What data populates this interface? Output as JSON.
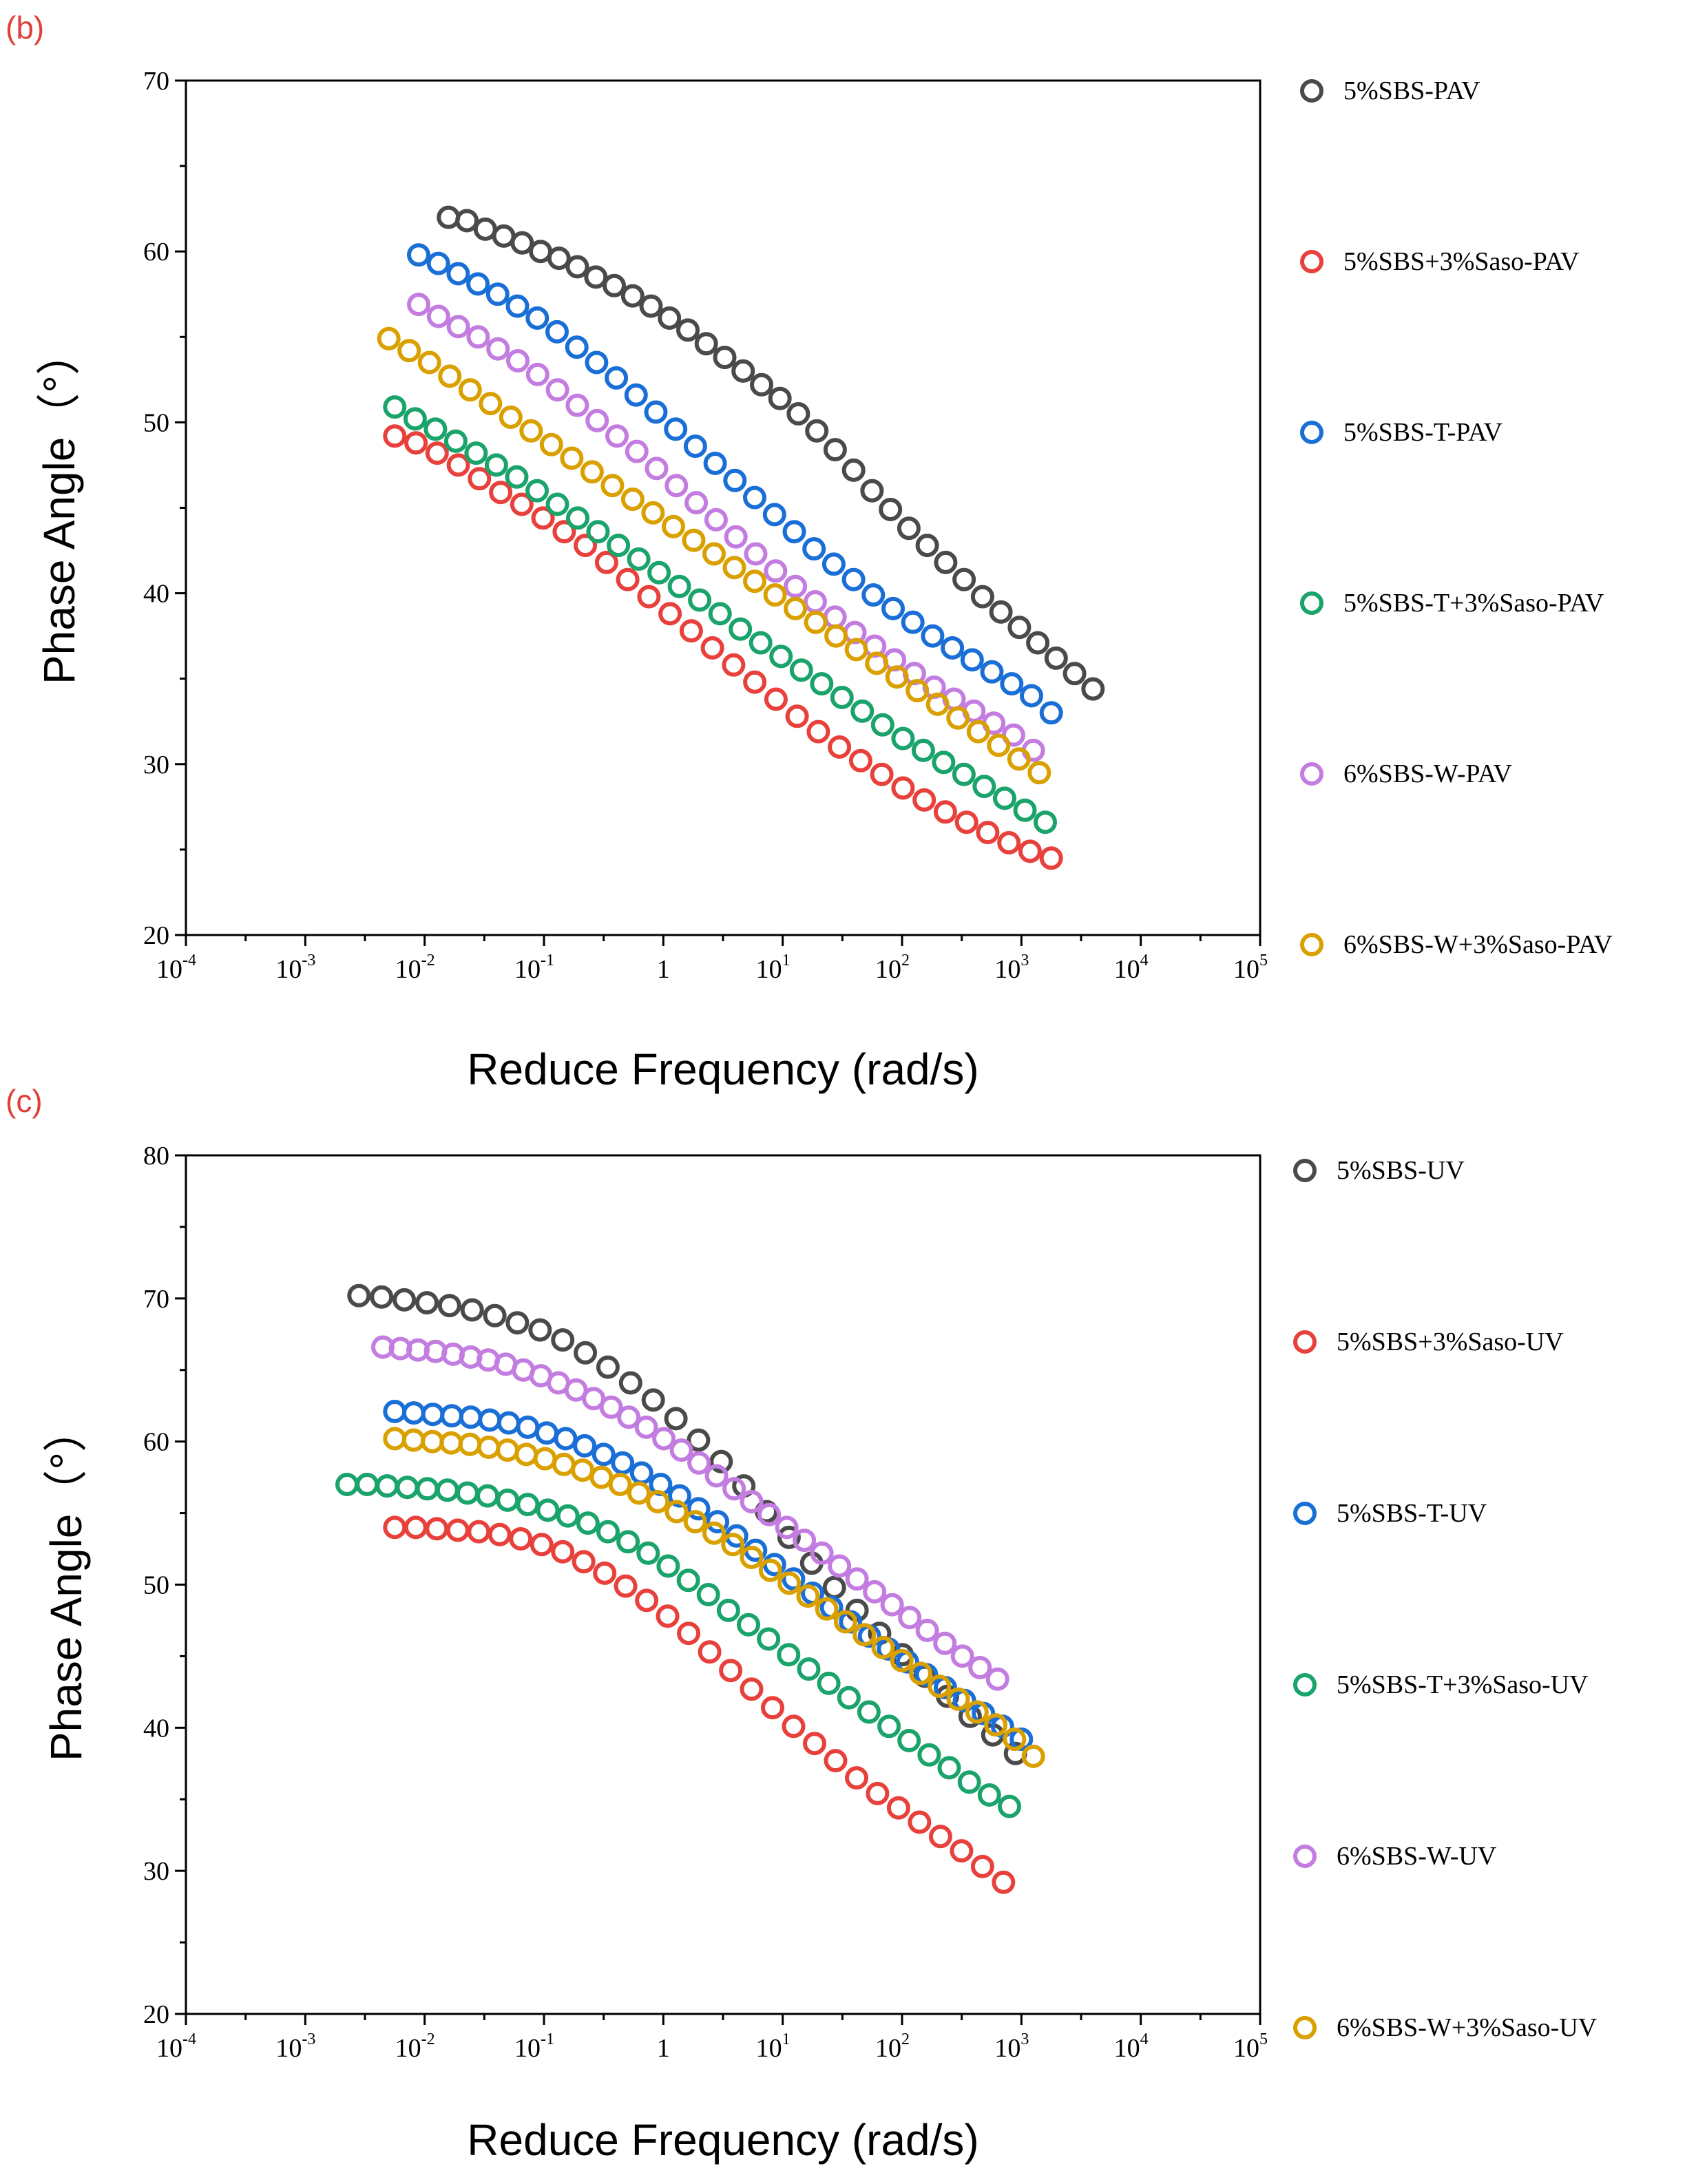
{
  "figure": {
    "panels": [
      "b",
      "c"
    ]
  },
  "chart_data": [
    {
      "panel": "(b)",
      "type": "scatter",
      "xscale": "log",
      "xlabel": "Reduce Frequency (rad/s)",
      "ylabel": "Phase Angle（°）",
      "xlim_exp": [
        -4,
        5
      ],
      "ylim": [
        20,
        70
      ],
      "yticks": [
        20,
        30,
        40,
        50,
        60,
        70
      ],
      "xticks": [
        {
          "base": "10",
          "exp": "-4"
        },
        {
          "base": "10",
          "exp": "-3"
        },
        {
          "base": "10",
          "exp": "-2"
        },
        {
          "base": "10",
          "exp": "-1"
        },
        {
          "base": "1",
          "exp": ""
        },
        {
          "base": "10",
          "exp": "1"
        },
        {
          "base": "10",
          "exp": "2"
        },
        {
          "base": "10",
          "exp": "3"
        },
        {
          "base": "10",
          "exp": "4"
        },
        {
          "base": "10",
          "exp": "5"
        }
      ],
      "marker": "open-circle",
      "series": [
        {
          "name": "5%SBS-PAV",
          "color": "#4a4a4a",
          "x_log_start": -1.8,
          "x_log_end": 3.6,
          "y": [
            62.0,
            61.8,
            61.3,
            60.9,
            60.5,
            60.0,
            59.6,
            59.1,
            58.5,
            58.0,
            57.4,
            56.8,
            56.1,
            55.4,
            54.6,
            53.8,
            53.0,
            52.2,
            51.4,
            50.5,
            49.5,
            48.4,
            47.2,
            46.0,
            44.9,
            43.8,
            42.8,
            41.8,
            40.8,
            39.8,
            38.9,
            38.0,
            37.1,
            36.2,
            35.3,
            34.4
          ]
        },
        {
          "name": "5%SBS+3%Saso-PAV",
          "color": "#e8413c",
          "x_log_start": -2.25,
          "x_log_end": 3.25,
          "y": [
            49.2,
            48.8,
            48.2,
            47.5,
            46.7,
            45.9,
            45.2,
            44.4,
            43.6,
            42.8,
            41.8,
            40.8,
            39.8,
            38.8,
            37.8,
            36.8,
            35.8,
            34.8,
            33.8,
            32.8,
            31.9,
            31.0,
            30.2,
            29.4,
            28.6,
            27.9,
            27.2,
            26.6,
            26.0,
            25.4,
            24.9,
            24.5
          ]
        },
        {
          "name": "5%SBS-T-PAV",
          "color": "#1a6fd6",
          "x_log_start": -2.05,
          "x_log_end": 3.25,
          "y": [
            59.8,
            59.3,
            58.7,
            58.1,
            57.5,
            56.8,
            56.1,
            55.3,
            54.4,
            53.5,
            52.6,
            51.6,
            50.6,
            49.6,
            48.6,
            47.6,
            46.6,
            45.6,
            44.6,
            43.6,
            42.6,
            41.7,
            40.8,
            39.9,
            39.1,
            38.3,
            37.5,
            36.8,
            36.1,
            35.4,
            34.7,
            34.0,
            33.0
          ]
        },
        {
          "name": "5%SBS-T+3%Saso-PAV",
          "color": "#1aa36a",
          "x_log_start": -2.25,
          "x_log_end": 3.2,
          "y": [
            50.9,
            50.2,
            49.6,
            48.9,
            48.2,
            47.5,
            46.8,
            46.0,
            45.2,
            44.4,
            43.6,
            42.8,
            42.0,
            41.2,
            40.4,
            39.6,
            38.8,
            37.9,
            37.1,
            36.3,
            35.5,
            34.7,
            33.9,
            33.1,
            32.3,
            31.5,
            30.8,
            30.1,
            29.4,
            28.7,
            28.0,
            27.3,
            26.6
          ]
        },
        {
          "name": "6%SBS-W-PAV",
          "color": "#c37de0",
          "x_log_start": -2.05,
          "x_log_end": 3.1,
          "y": [
            56.9,
            56.2,
            55.6,
            55.0,
            54.3,
            53.6,
            52.8,
            51.9,
            51.0,
            50.1,
            49.2,
            48.3,
            47.3,
            46.3,
            45.3,
            44.3,
            43.3,
            42.3,
            41.3,
            40.4,
            39.5,
            38.6,
            37.7,
            36.9,
            36.1,
            35.3,
            34.5,
            33.8,
            33.1,
            32.4,
            31.7,
            30.8
          ]
        },
        {
          "name": "6%SBS-W+3%Saso-PAV",
          "color": "#d9a000",
          "x_log_start": -2.3,
          "x_log_end": 3.15,
          "y": [
            54.9,
            54.2,
            53.5,
            52.7,
            51.9,
            51.1,
            50.3,
            49.5,
            48.7,
            47.9,
            47.1,
            46.3,
            45.5,
            44.7,
            43.9,
            43.1,
            42.3,
            41.5,
            40.7,
            39.9,
            39.1,
            38.3,
            37.5,
            36.7,
            35.9,
            35.1,
            34.3,
            33.5,
            32.7,
            31.9,
            31.1,
            30.3,
            29.5
          ]
        }
      ]
    },
    {
      "panel": "(c)",
      "type": "scatter",
      "xscale": "log",
      "xlabel": "Reduce Frequency (rad/s)",
      "ylabel": "Phase Angle（°）",
      "xlim_exp": [
        -4,
        5
      ],
      "ylim": [
        20,
        80
      ],
      "yticks": [
        20,
        30,
        40,
        50,
        60,
        70,
        80
      ],
      "xticks": [
        {
          "base": "10",
          "exp": "-4"
        },
        {
          "base": "10",
          "exp": "-3"
        },
        {
          "base": "10",
          "exp": "-2"
        },
        {
          "base": "10",
          "exp": "-1"
        },
        {
          "base": "1",
          "exp": ""
        },
        {
          "base": "10",
          "exp": "1"
        },
        {
          "base": "10",
          "exp": "2"
        },
        {
          "base": "10",
          "exp": "3"
        },
        {
          "base": "10",
          "exp": "4"
        },
        {
          "base": "10",
          "exp": "5"
        }
      ],
      "marker": "open-circle",
      "series": [
        {
          "name": "5%SBS-UV",
          "color": "#4a4a4a",
          "x_log_start": -2.55,
          "x_log_end": 2.95,
          "y": [
            70.2,
            70.1,
            69.9,
            69.7,
            69.5,
            69.2,
            68.8,
            68.3,
            67.8,
            67.1,
            66.2,
            65.2,
            64.1,
            62.9,
            61.6,
            60.1,
            58.6,
            56.9,
            55.1,
            53.3,
            51.5,
            49.8,
            48.2,
            46.6,
            45.1,
            43.6,
            42.2,
            40.8,
            39.5,
            38.2
          ]
        },
        {
          "name": "5%SBS+3%Saso-UV",
          "color": "#e8413c",
          "x_log_start": -2.25,
          "x_log_end": 2.85,
          "y": [
            54.0,
            54.0,
            53.9,
            53.8,
            53.7,
            53.5,
            53.2,
            52.8,
            52.3,
            51.6,
            50.8,
            49.9,
            48.9,
            47.8,
            46.6,
            45.3,
            44.0,
            42.7,
            41.4,
            40.1,
            38.9,
            37.7,
            36.5,
            35.4,
            34.4,
            33.4,
            32.4,
            31.4,
            30.3,
            29.2
          ]
        },
        {
          "name": "5%SBS-T-UV",
          "color": "#1a6fd6",
          "x_log_start": -2.25,
          "x_log_end": 3.0,
          "y": [
            62.1,
            62.0,
            61.9,
            61.8,
            61.7,
            61.5,
            61.3,
            61.0,
            60.6,
            60.2,
            59.7,
            59.1,
            58.5,
            57.8,
            57.0,
            56.2,
            55.3,
            54.4,
            53.4,
            52.4,
            51.4,
            50.4,
            49.4,
            48.4,
            47.4,
            46.4,
            45.5,
            44.6,
            43.7,
            42.8,
            41.9,
            41.0,
            40.1,
            39.2
          ]
        },
        {
          "name": "5%SBS-T+3%Saso-UV",
          "color": "#1aa36a",
          "x_log_start": -2.65,
          "x_log_end": 2.9,
          "y": [
            57.0,
            57.0,
            56.9,
            56.8,
            56.7,
            56.6,
            56.4,
            56.2,
            55.9,
            55.6,
            55.2,
            54.8,
            54.3,
            53.7,
            53.0,
            52.2,
            51.3,
            50.3,
            49.3,
            48.2,
            47.2,
            46.2,
            45.1,
            44.1,
            43.1,
            42.1,
            41.1,
            40.1,
            39.1,
            38.1,
            37.2,
            36.2,
            35.3,
            34.5
          ]
        },
        {
          "name": "6%SBS-W-UV",
          "color": "#c37de0",
          "x_log_start": -2.35,
          "x_log_end": 2.8,
          "y": [
            66.6,
            66.5,
            66.4,
            66.3,
            66.1,
            65.9,
            65.7,
            65.4,
            65.0,
            64.6,
            64.1,
            63.6,
            63.0,
            62.4,
            61.7,
            61.0,
            60.2,
            59.4,
            58.5,
            57.6,
            56.7,
            55.8,
            54.9,
            54.0,
            53.1,
            52.2,
            51.3,
            50.4,
            49.5,
            48.6,
            47.7,
            46.8,
            45.9,
            45.0,
            44.2,
            43.4
          ]
        },
        {
          "name": "6%SBS-W+3%Saso-UV",
          "color": "#d9a000",
          "x_log_start": -2.25,
          "x_log_end": 3.1,
          "y": [
            60.2,
            60.1,
            60.0,
            59.9,
            59.8,
            59.6,
            59.4,
            59.1,
            58.8,
            58.4,
            58.0,
            57.5,
            57.0,
            56.4,
            55.8,
            55.1,
            54.4,
            53.6,
            52.8,
            51.9,
            51.0,
            50.1,
            49.2,
            48.3,
            47.4,
            46.5,
            45.6,
            44.7,
            43.8,
            42.9,
            42.0,
            41.1,
            40.2,
            39.2,
            38.0
          ]
        }
      ]
    }
  ]
}
